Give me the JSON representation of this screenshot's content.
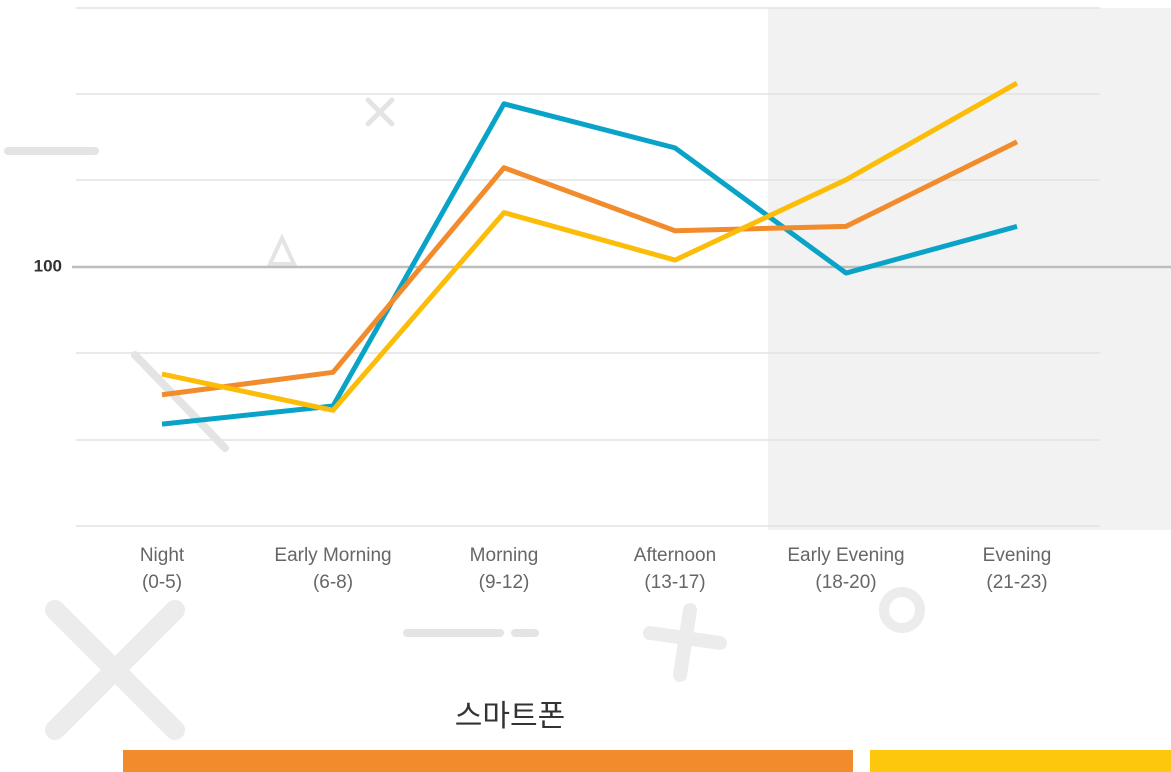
{
  "chart_data": {
    "type": "line",
    "categories": [
      [
        "Night",
        "(0-5)"
      ],
      [
        "Early Morning",
        "(6-8)"
      ],
      [
        "Morning",
        "(9-12)"
      ],
      [
        "Afternoon",
        "(13-17)"
      ],
      [
        "Early Evening",
        "(18-20)"
      ],
      [
        "Evening",
        "(21-23)"
      ]
    ],
    "series": [
      {
        "color": "#0aa3c8",
        "values": [
          81.8,
          83.9,
          118.9,
          113.8,
          99.3,
          104.7
        ]
      },
      {
        "color": "#f28b2c",
        "values": [
          85.2,
          87.8,
          111.5,
          104.2,
          104.7,
          114.5
        ]
      },
      {
        "color": "#fbbd08",
        "values": [
          87.6,
          83.4,
          106.3,
          100.8,
          110.1,
          121.3
        ]
      }
    ],
    "ylim": [
      70,
      130
    ],
    "yticks": [
      100
    ],
    "caption": "스마트폰"
  }
}
